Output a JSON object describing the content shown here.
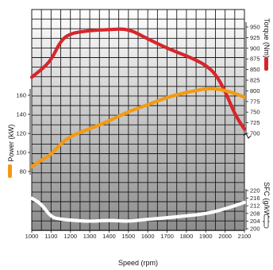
{
  "chart_data": {
    "type": "line",
    "x": [
      1000,
      1050,
      1100,
      1150,
      1200,
      1300,
      1400,
      1500,
      1600,
      1700,
      1800,
      1850,
      1900,
      1950,
      2000,
      2050,
      2100
    ],
    "xlabel": "Speed (rpm)",
    "xlim": [
      1000,
      2100
    ],
    "x_ticks": [
      "1000",
      "1100",
      "1200",
      "1300",
      "1400",
      "1500",
      "1600",
      "1700",
      "1800",
      "1900",
      "2000",
      "2100"
    ],
    "series": [
      {
        "name": "Torque (Nm)",
        "axis": "right-top",
        "color": "#d7262b",
        "values": [
          832,
          850,
          872,
          918,
          935,
          942,
          944,
          946,
          922,
          900,
          882,
          872,
          860,
          840,
          800,
          745,
          710
        ]
      },
      {
        "name": "Power (kW)",
        "axis": "left",
        "color": "#f39a12",
        "values": [
          85,
          92,
          98,
          109,
          117,
          125,
          133,
          143,
          150,
          158,
          163,
          165,
          167,
          167,
          165,
          162,
          158
        ]
      },
      {
        "name": "SFC (g/kWh)",
        "axis": "right-bottom",
        "color": "#ffffff",
        "values": [
          216,
          213,
          206,
          205,
          204.5,
          203.8,
          204.5,
          203.8,
          205,
          205.7,
          206.8,
          207.2,
          208,
          209,
          210.5,
          212,
          213.8
        ]
      }
    ],
    "axes": {
      "torque": {
        "label": "Torque (Nm)",
        "ylim": [
          700,
          950
        ],
        "ticks": [
          "700",
          "725",
          "750",
          "775",
          "800",
          "825",
          "850",
          "875",
          "900",
          "925",
          "950"
        ]
      },
      "power": {
        "label": "Power (kW)",
        "ylim": [
          80,
          160
        ],
        "ticks": [
          "80",
          "100",
          "120",
          "140",
          "160"
        ]
      },
      "sfc": {
        "label": "SFC (g/kWh)",
        "ylim": [
          200,
          220
        ],
        "ticks": [
          "200",
          "204",
          "208",
          "212",
          "216",
          "220"
        ]
      }
    },
    "grid": true,
    "background_gradient": [
      "#ffffff",
      "#8c8c8c"
    ]
  }
}
